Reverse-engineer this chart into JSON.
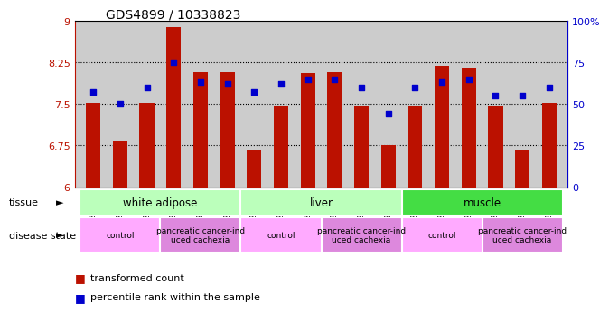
{
  "title": "GDS4899 / 10338823",
  "samples": [
    "GSM1255438",
    "GSM1255439",
    "GSM1255441",
    "GSM1255437",
    "GSM1255440",
    "GSM1255442",
    "GSM1255450",
    "GSM1255451",
    "GSM1255453",
    "GSM1255449",
    "GSM1255452",
    "GSM1255454",
    "GSM1255444",
    "GSM1255445",
    "GSM1255447",
    "GSM1255443",
    "GSM1255446",
    "GSM1255448"
  ],
  "red_values": [
    7.52,
    6.84,
    7.52,
    8.88,
    8.08,
    8.08,
    6.68,
    7.48,
    8.05,
    8.08,
    7.46,
    6.76,
    7.46,
    8.18,
    8.15,
    7.46,
    6.67,
    7.52
  ],
  "blue_values": [
    57,
    50,
    60,
    75,
    63,
    62,
    57,
    62,
    65,
    65,
    60,
    44,
    60,
    63,
    65,
    55,
    55,
    60
  ],
  "ylim_left": [
    6,
    9
  ],
  "ylim_right": [
    0,
    100
  ],
  "yticks_left": [
    6,
    6.75,
    7.5,
    8.25,
    9
  ],
  "yticks_left_labels": [
    "6",
    "6.75",
    "7.5",
    "8.25",
    "9"
  ],
  "yticks_right": [
    0,
    25,
    50,
    75,
    100
  ],
  "yticks_right_labels": [
    "0",
    "25",
    "50",
    "75",
    "100%"
  ],
  "red_color": "#bb1100",
  "blue_color": "#0000cc",
  "bar_width": 0.55,
  "tissue_groups": [
    {
      "label": "white adipose",
      "start": 0,
      "end": 5,
      "color": "#bbffbb"
    },
    {
      "label": "liver",
      "start": 6,
      "end": 11,
      "color": "#bbffbb"
    },
    {
      "label": "muscle",
      "start": 12,
      "end": 17,
      "color": "#44dd44"
    }
  ],
  "disease_groups": [
    {
      "label": "control",
      "start": 0,
      "end": 2,
      "color": "#ffaaff"
    },
    {
      "label": "pancreatic cancer-ind\nuced cachexia",
      "start": 3,
      "end": 5,
      "color": "#dd88dd"
    },
    {
      "label": "control",
      "start": 6,
      "end": 8,
      "color": "#ffaaff"
    },
    {
      "label": "pancreatic cancer-ind\nuced cachexia",
      "start": 9,
      "end": 11,
      "color": "#dd88dd"
    },
    {
      "label": "control",
      "start": 12,
      "end": 14,
      "color": "#ffaaff"
    },
    {
      "label": "pancreatic cancer-ind\nuced cachexia",
      "start": 15,
      "end": 17,
      "color": "#dd88dd"
    }
  ],
  "tissue_label": "tissue",
  "disease_label": "disease state",
  "bg_color": "#ffffff",
  "sample_bg_color": "#cccccc",
  "dotted_lines": [
    6.75,
    7.5,
    8.25
  ]
}
